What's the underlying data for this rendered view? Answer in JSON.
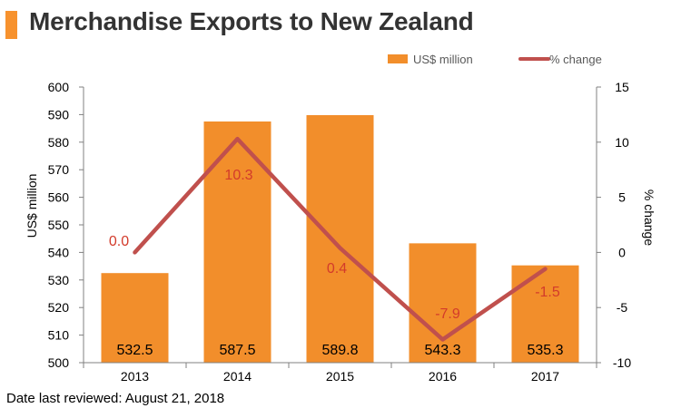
{
  "header": {
    "title": "Merchandise Exports to New Zealand"
  },
  "footer": {
    "note": "Date last reviewed: August 21, 2018"
  },
  "colors": {
    "accent": "#F7922E",
    "bar": "#F28E2B",
    "line": "#C0504D",
    "pct_label": "#D33B2B",
    "title_text": "#333333"
  },
  "chart_data": {
    "type": "bar",
    "categories": [
      "2013",
      "2014",
      "2015",
      "2016",
      "2017"
    ],
    "series": [
      {
        "name": "US$ million",
        "type": "bar",
        "axis": "left",
        "values": [
          532.5,
          587.5,
          589.8,
          543.3,
          535.3
        ],
        "labels": [
          "532.5",
          "587.5",
          "589.8",
          "543.3",
          "535.3"
        ]
      },
      {
        "name": "% change",
        "type": "line",
        "axis": "right",
        "values": [
          0.0,
          10.3,
          0.4,
          -7.9,
          -1.5
        ],
        "labels": [
          "0.0",
          "10.3",
          "0.4",
          "-7.9",
          "-1.5"
        ]
      }
    ],
    "ylabel": "US$ million",
    "y2label": "% change",
    "ylim": [
      500,
      600
    ],
    "yticks": [
      500,
      510,
      520,
      530,
      540,
      550,
      560,
      570,
      580,
      590,
      600
    ],
    "y2lim": [
      -10,
      15
    ],
    "y2ticks": [
      -10,
      -5,
      0,
      5,
      10,
      15
    ],
    "legend": "top-right",
    "grid": false
  }
}
